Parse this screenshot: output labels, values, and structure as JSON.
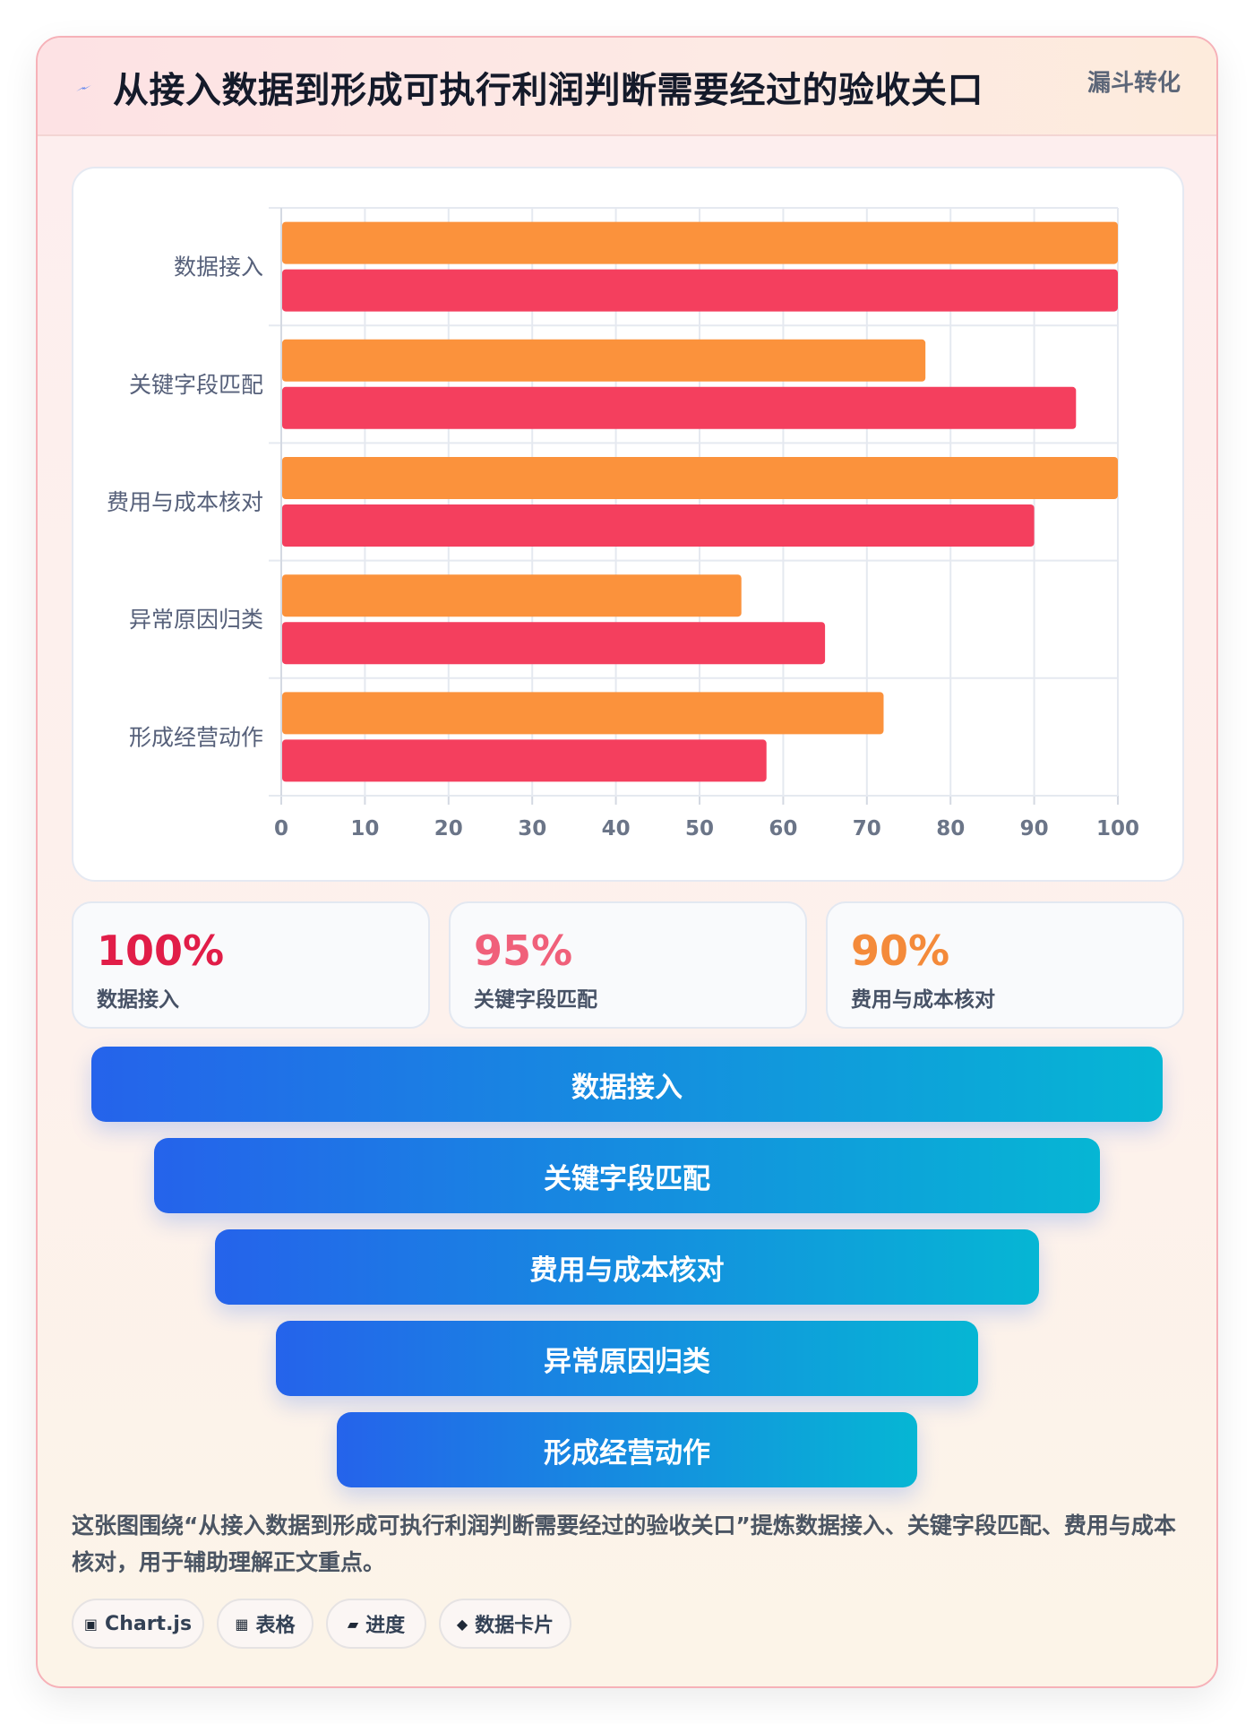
{
  "header": {
    "icon": "lightning-icon",
    "title": "从接入数据到形成可执行利润判断需要经过的验收关口",
    "tag": "漏斗转化"
  },
  "chart_data": {
    "type": "bar",
    "orientation": "horizontal",
    "categories": [
      "数据接入",
      "关键字段匹配",
      "费用与成本核对",
      "异常原因归类",
      "形成经营动作"
    ],
    "series": [
      {
        "color": "#fb923c",
        "values": [
          100,
          77,
          100,
          55,
          72
        ]
      },
      {
        "color": "#f43f5e",
        "values": [
          100,
          95,
          90,
          65,
          58
        ]
      }
    ],
    "xlim": [
      0,
      100
    ],
    "x_ticks": [
      0,
      10,
      20,
      30,
      40,
      50,
      60,
      70,
      80,
      90,
      100
    ],
    "grid": true
  },
  "stats": [
    {
      "value": "100%",
      "label": "数据接入",
      "color": "#e11d48"
    },
    {
      "value": "95%",
      "label": "关键字段匹配",
      "color": "#f0607a"
    },
    {
      "value": "90%",
      "label": "费用与成本核对",
      "color": "#f48a3a"
    }
  ],
  "funnel": [
    "数据接入",
    "关键字段匹配",
    "费用与成本核对",
    "异常原因归类",
    "形成经营动作"
  ],
  "description": "这张图围绕“从接入数据到形成可执行利润判断需要经过的验收关口”提炼数据接入、关键字段匹配、费用与成本核对，用于辅助理解正文重点。",
  "tags": [
    {
      "icon": "chip-icon",
      "glyph": "▣",
      "label": "Chart.js"
    },
    {
      "icon": "table-icon",
      "glyph": "▦",
      "label": "表格"
    },
    {
      "icon": "progress-icon",
      "glyph": "▰",
      "label": "进度"
    },
    {
      "icon": "diamond-icon",
      "glyph": "◆",
      "label": "数据卡片"
    }
  ]
}
